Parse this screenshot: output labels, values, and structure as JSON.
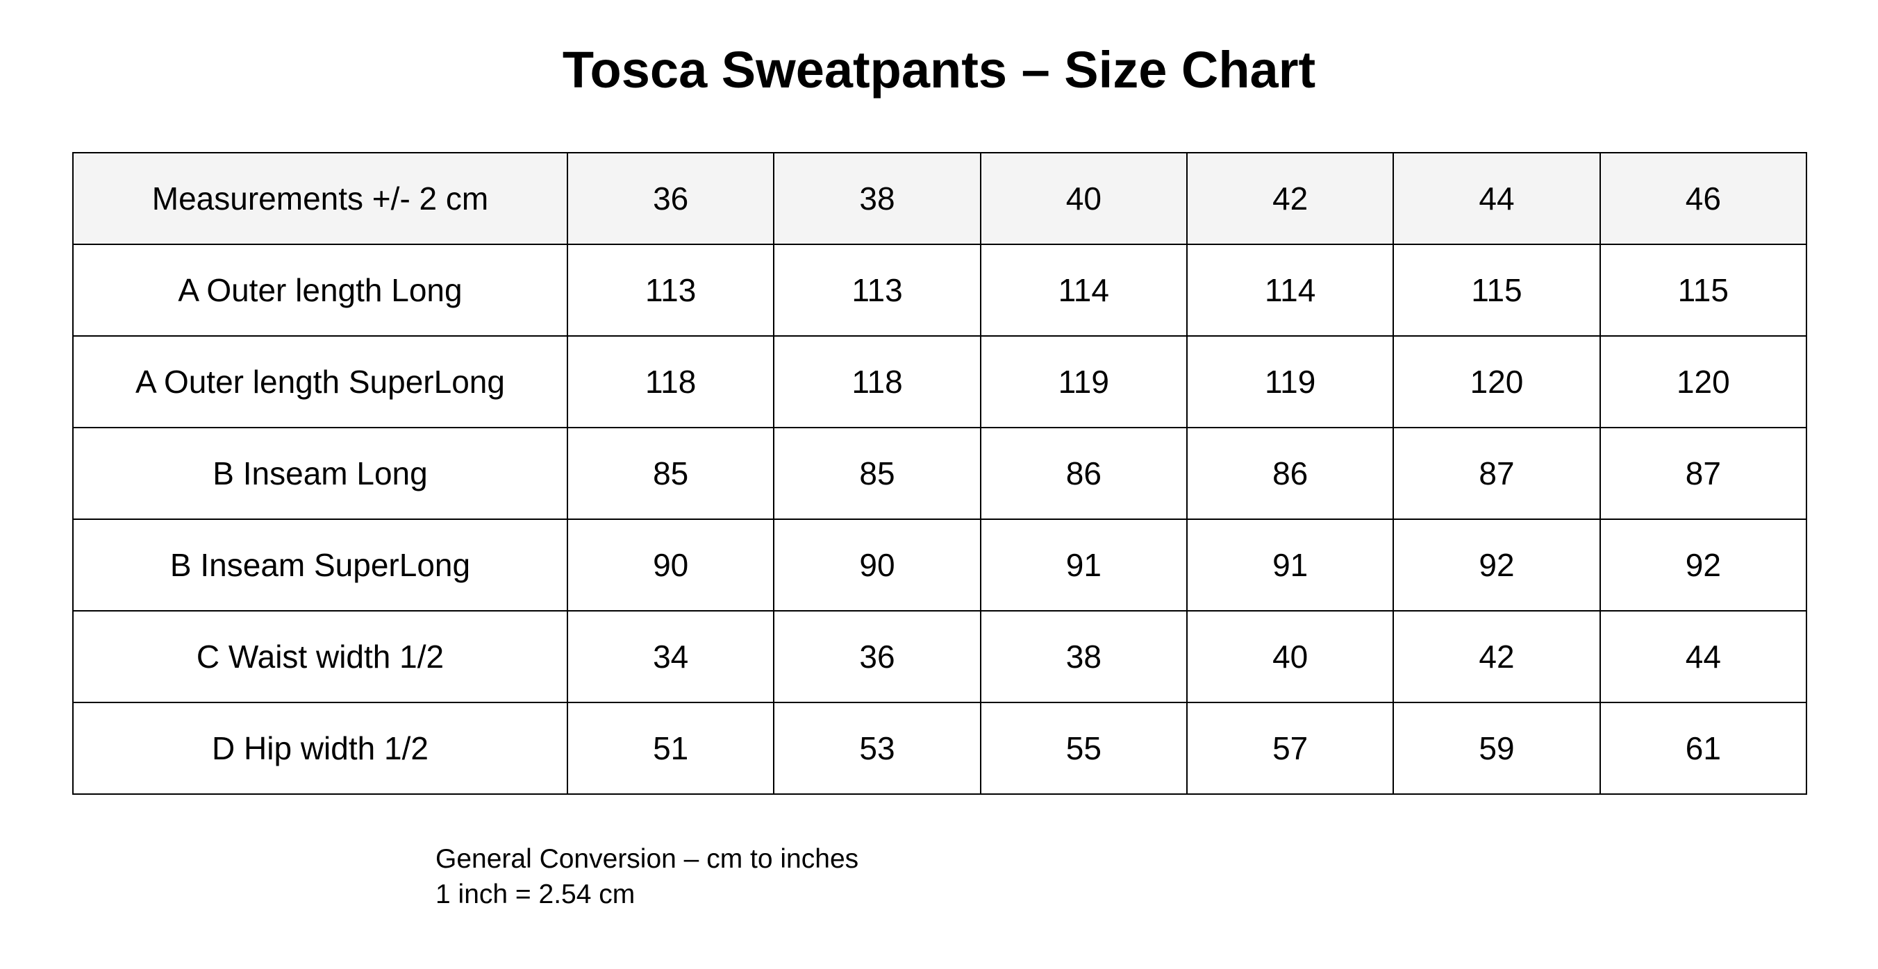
{
  "title": "Tosca Sweatpants – Size Chart",
  "table": {
    "header": [
      "Measurements +/- 2 cm",
      36,
      38,
      40,
      42,
      44,
      46
    ],
    "rows": [
      [
        "A Outer length Long",
        113,
        113,
        114,
        114,
        115,
        115
      ],
      [
        "A Outer length SuperLong",
        118,
        118,
        119,
        119,
        120,
        120
      ],
      [
        "B Inseam Long",
        85,
        85,
        86,
        86,
        87,
        87
      ],
      [
        "B Inseam SuperLong",
        90,
        90,
        91,
        91,
        92,
        92
      ],
      [
        "C Waist width 1/2",
        34,
        36,
        38,
        40,
        42,
        44
      ],
      [
        "D Hip width 1/2",
        51,
        53,
        55,
        57,
        59,
        61
      ]
    ]
  },
  "notes": [
    "General Conversion – cm to inches",
    "1 inch = 2.54 cm"
  ]
}
